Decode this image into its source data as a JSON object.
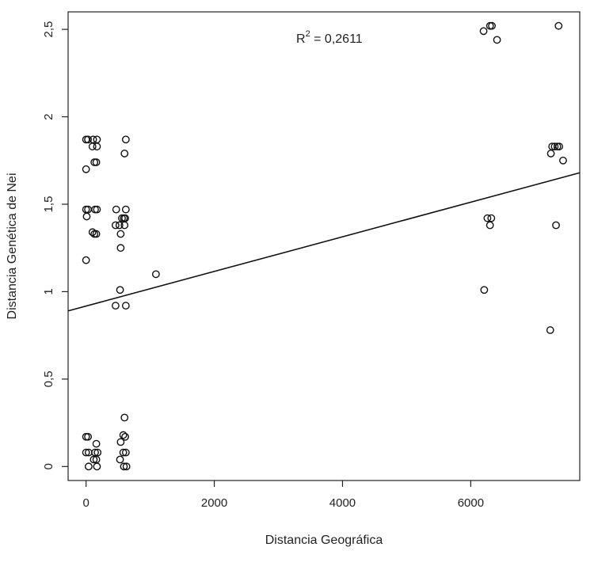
{
  "chart_data": {
    "type": "scatter",
    "xlabel": "Distancia Geográfica",
    "ylabel": "Distancia Genética de Nei",
    "xlim": [
      -280,
      7700
    ],
    "ylim": [
      -0.08,
      2.6
    ],
    "x_ticks": [
      0,
      2000,
      4000,
      6000
    ],
    "x_tick_labels": [
      "0",
      "2000",
      "4000",
      "6000"
    ],
    "y_ticks": [
      0,
      0.5,
      1,
      1.5,
      2,
      2.5
    ],
    "y_tick_labels": [
      "0",
      "0,5",
      "1",
      "1,5",
      "2",
      "2,5"
    ],
    "grid": false,
    "annotation": {
      "base": "R",
      "sup": "2",
      "rest": " = 0,2611"
    },
    "trendline": {
      "x": [
        -280,
        7700
      ],
      "y": [
        0.89,
        1.68
      ]
    },
    "points": [
      [
        0,
        1.87
      ],
      [
        30,
        1.87
      ],
      [
        110,
        1.87
      ],
      [
        170,
        1.87
      ],
      [
        620,
        1.87
      ],
      [
        100,
        1.83
      ],
      [
        170,
        1.83
      ],
      [
        7270,
        1.83
      ],
      [
        7310,
        1.83
      ],
      [
        7350,
        1.83
      ],
      [
        7380,
        1.83
      ],
      [
        600,
        1.79
      ],
      [
        7250,
        1.79
      ],
      [
        130,
        1.74
      ],
      [
        160,
        1.74
      ],
      [
        7440,
        1.75
      ],
      [
        0,
        1.7
      ],
      [
        0,
        1.47
      ],
      [
        30,
        1.47
      ],
      [
        140,
        1.47
      ],
      [
        170,
        1.47
      ],
      [
        470,
        1.47
      ],
      [
        620,
        1.47
      ],
      [
        10,
        1.43
      ],
      [
        560,
        1.42
      ],
      [
        590,
        1.42
      ],
      [
        610,
        1.42
      ],
      [
        6260,
        1.42
      ],
      [
        6320,
        1.42
      ],
      [
        460,
        1.38
      ],
      [
        520,
        1.38
      ],
      [
        600,
        1.38
      ],
      [
        6300,
        1.38
      ],
      [
        7330,
        1.38
      ],
      [
        100,
        1.34
      ],
      [
        130,
        1.33
      ],
      [
        160,
        1.33
      ],
      [
        540,
        1.33
      ],
      [
        540,
        1.25
      ],
      [
        0,
        1.18
      ],
      [
        1090,
        1.1
      ],
      [
        530,
        1.01
      ],
      [
        6210,
        1.01
      ],
      [
        460,
        0.92
      ],
      [
        620,
        0.92
      ],
      [
        7240,
        0.78
      ],
      [
        6200,
        2.49
      ],
      [
        6300,
        2.52
      ],
      [
        6330,
        2.52
      ],
      [
        6410,
        2.44
      ],
      [
        7370,
        2.52
      ],
      [
        600,
        0.28
      ],
      [
        580,
        0.18
      ],
      [
        610,
        0.17
      ],
      [
        0,
        0.17
      ],
      [
        30,
        0.17
      ],
      [
        540,
        0.14
      ],
      [
        160,
        0.13
      ],
      [
        0,
        0.08
      ],
      [
        40,
        0.08
      ],
      [
        140,
        0.08
      ],
      [
        180,
        0.08
      ],
      [
        580,
        0.08
      ],
      [
        620,
        0.08
      ],
      [
        120,
        0.04
      ],
      [
        160,
        0.04
      ],
      [
        530,
        0.04
      ],
      [
        40,
        0.0
      ],
      [
        170,
        0.0
      ],
      [
        590,
        0.0
      ],
      [
        630,
        0.0
      ]
    ]
  }
}
